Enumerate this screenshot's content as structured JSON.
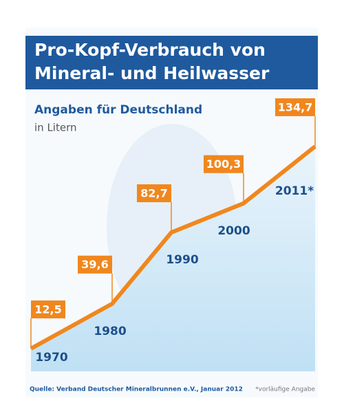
{
  "chart_data": {
    "type": "line",
    "title": "Pro-Kopf-Verbrauch von Mineral- und Heilwasser",
    "subtitle": "Angaben für Deutschland",
    "unit_note": "in Litern",
    "categories": [
      "1970",
      "1980",
      "1990",
      "2000",
      "2011*"
    ],
    "series": [
      {
        "name": "Pro-Kopf-Verbrauch",
        "color": "#f0871e",
        "values": [
          12.5,
          39.6,
          82.7,
          100.3,
          134.7
        ],
        "value_labels": [
          "12,5",
          "39,6",
          "82,7",
          "100,3",
          "134,7"
        ]
      }
    ],
    "source": "Quelle: Verband Deutscher Mineralbrunnen e.V., Januar 2012",
    "footnote": "*vorläufige Angabe"
  }
}
